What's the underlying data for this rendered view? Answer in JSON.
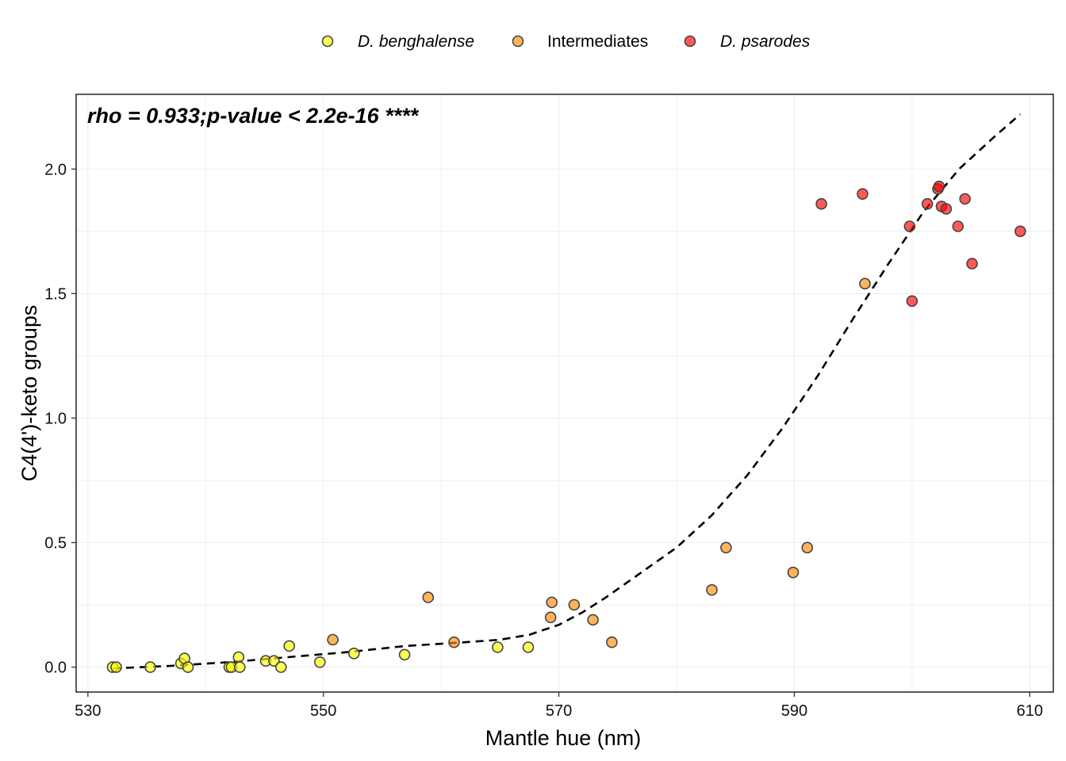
{
  "chart_data": {
    "type": "scatter",
    "xlabel": "Mantle hue (nm)",
    "ylabel": "C4(4')-keto groups",
    "xlim": [
      529,
      612
    ],
    "ylim": [
      -0.1,
      2.3
    ],
    "x_ticks": [
      530,
      550,
      570,
      590,
      610
    ],
    "x_tick_labels": [
      "530",
      "550",
      "570",
      "590",
      "610"
    ],
    "y_ticks": [
      0.0,
      0.5,
      1.0,
      1.5,
      2.0
    ],
    "y_tick_labels": [
      "0.0",
      "0.5",
      "1.0",
      "1.5",
      "2.0"
    ],
    "grid": true,
    "legend_position": "top",
    "annotation": "rho = 0.933;p-value < 2.2e-16 ****",
    "series": [
      {
        "name": "D. benghalense",
        "italic": true,
        "color": "#ffff00",
        "points": [
          [
            532.1,
            0.0
          ],
          [
            532.4,
            0.0
          ],
          [
            535.3,
            0.0
          ],
          [
            537.9,
            0.015
          ],
          [
            538.2,
            0.035
          ],
          [
            538.5,
            0.0
          ],
          [
            542.0,
            0.0
          ],
          [
            542.2,
            0.0
          ],
          [
            542.8,
            0.04
          ],
          [
            542.9,
            0.0
          ],
          [
            545.1,
            0.025
          ],
          [
            545.8,
            0.025
          ],
          [
            546.4,
            0.0
          ],
          [
            547.1,
            0.085
          ],
          [
            549.7,
            0.02
          ],
          [
            552.6,
            0.055
          ],
          [
            556.9,
            0.05
          ],
          [
            564.8,
            0.08
          ],
          [
            567.4,
            0.08
          ]
        ]
      },
      {
        "name": "Intermediates",
        "italic": false,
        "color": "#ff8c00",
        "points": [
          [
            550.8,
            0.11
          ],
          [
            558.9,
            0.28
          ],
          [
            561.1,
            0.1
          ],
          [
            569.3,
            0.2
          ],
          [
            569.4,
            0.26
          ],
          [
            571.3,
            0.25
          ],
          [
            572.9,
            0.19
          ],
          [
            574.5,
            0.1
          ],
          [
            583.0,
            0.31
          ],
          [
            584.2,
            0.48
          ],
          [
            589.9,
            0.38
          ],
          [
            591.1,
            0.48
          ],
          [
            596.0,
            1.54
          ]
        ]
      },
      {
        "name": "D. psarodes",
        "italic": true,
        "color": "#ff0000",
        "points": [
          [
            592.3,
            1.86
          ],
          [
            595.8,
            1.9
          ],
          [
            599.8,
            1.77
          ],
          [
            600.0,
            1.47
          ],
          [
            601.3,
            1.86
          ],
          [
            602.2,
            1.92
          ],
          [
            602.3,
            1.93
          ],
          [
            602.5,
            1.85
          ],
          [
            602.9,
            1.84
          ],
          [
            603.9,
            1.77
          ],
          [
            604.5,
            1.88
          ],
          [
            605.1,
            1.62
          ],
          [
            609.2,
            1.75
          ]
        ]
      }
    ],
    "trend_line": {
      "style": "dashed",
      "color": "#000000",
      "points": [
        [
          532.1,
          -0.005
        ],
        [
          537.0,
          0.005
        ],
        [
          542.0,
          0.02
        ],
        [
          547.0,
          0.04
        ],
        [
          552.0,
          0.06
        ],
        [
          557.0,
          0.085
        ],
        [
          562.0,
          0.1
        ],
        [
          565.0,
          0.11
        ],
        [
          567.5,
          0.13
        ],
        [
          570.0,
          0.17
        ],
        [
          572.0,
          0.22
        ],
        [
          574.0,
          0.28
        ],
        [
          577.0,
          0.38
        ],
        [
          580.0,
          0.48
        ],
        [
          583.0,
          0.61
        ],
        [
          586.0,
          0.77
        ],
        [
          589.0,
          0.96
        ],
        [
          592.0,
          1.17
        ],
        [
          595.0,
          1.4
        ],
        [
          598.0,
          1.62
        ],
        [
          601.0,
          1.83
        ],
        [
          604.0,
          2.0
        ],
        [
          607.0,
          2.13
        ],
        [
          609.2,
          2.22
        ]
      ]
    }
  }
}
